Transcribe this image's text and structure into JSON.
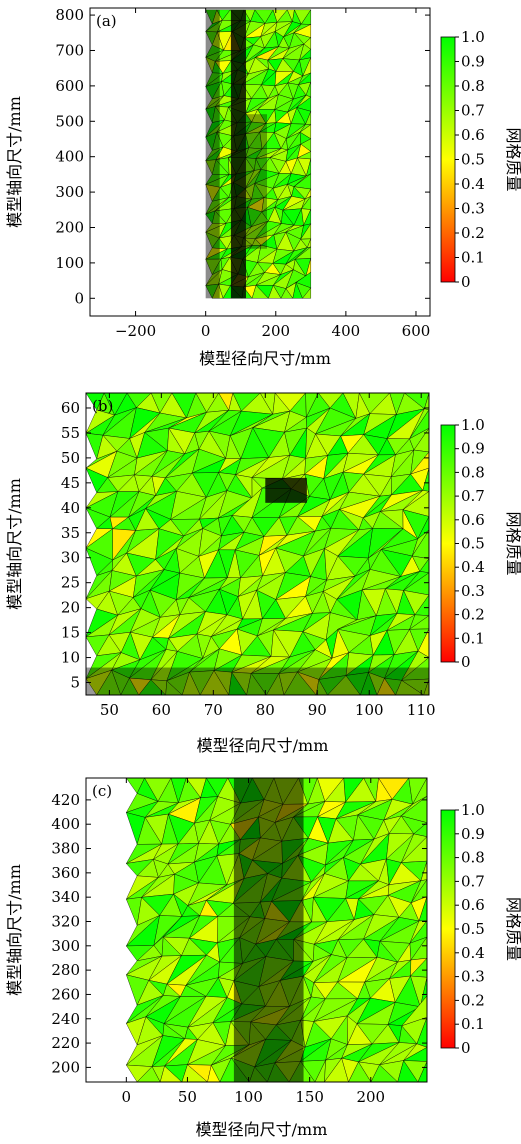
{
  "chart_data": [
    {
      "type": "heatmap",
      "panel_label": "(a)",
      "xlabel": "模型径向尺寸/mm",
      "ylabel": "模型轴向尺寸/mm",
      "xlim": [
        -330,
        640
      ],
      "ylim": [
        -50,
        820
      ],
      "xticks": [
        -200,
        0,
        200,
        400,
        600
      ],
      "xtick_labels": [
        "−200",
        "0",
        "200",
        "400",
        "600"
      ],
      "yticks": [
        0,
        100,
        200,
        300,
        400,
        500,
        600,
        700,
        800
      ],
      "ytick_labels": [
        "0",
        "100",
        "200",
        "300",
        "400",
        "500",
        "600",
        "700",
        "800"
      ],
      "mesh_extent_x": [
        0,
        300
      ],
      "mesh_extent_y": [
        0,
        815
      ],
      "colorbar": {
        "label": "网格质量",
        "range": [
          0,
          1
        ],
        "ticks": [
          0,
          0.1,
          0.2,
          0.3,
          0.4,
          0.5,
          0.6,
          0.7,
          0.8,
          0.9,
          1.0
        ],
        "tick_labels": [
          "0",
          "0.1",
          "0.2",
          "0.3",
          "0.4",
          "0.5",
          "0.6",
          "0.7",
          "0.8",
          "0.9",
          "1.0"
        ],
        "colors": [
          "#ff0000",
          "#ffff00",
          "#00ff00"
        ]
      },
      "grid": false
    },
    {
      "type": "heatmap",
      "panel_label": "(b)",
      "xlabel": "模型径向尺寸/mm",
      "ylabel": "模型轴向尺寸/mm",
      "xlim": [
        45.5,
        111.5
      ],
      "ylim": [
        2.5,
        63
      ],
      "xticks": [
        50,
        60,
        70,
        80,
        90,
        100,
        110
      ],
      "xtick_labels": [
        "50",
        "60",
        "70",
        "80",
        "90",
        "100",
        "110"
      ],
      "yticks": [
        5,
        10,
        15,
        20,
        25,
        30,
        35,
        40,
        45,
        50,
        55,
        60
      ],
      "ytick_labels": [
        "5",
        "10",
        "15",
        "20",
        "25",
        "30",
        "35",
        "40",
        "45",
        "50",
        "55",
        "60"
      ],
      "mesh_extent_x": [
        45.5,
        111.5
      ],
      "mesh_extent_y": [
        2.5,
        63
      ],
      "colorbar": {
        "label": "网格质量",
        "range": [
          0,
          1
        ],
        "ticks": [
          0,
          0.1,
          0.2,
          0.3,
          0.4,
          0.5,
          0.6,
          0.7,
          0.8,
          0.9,
          1.0
        ],
        "tick_labels": [
          "0",
          "0.1",
          "0.2",
          "0.3",
          "0.4",
          "0.5",
          "0.6",
          "0.7",
          "0.8",
          "0.9",
          "1.0"
        ],
        "colors": [
          "#ff0000",
          "#ffff00",
          "#00ff00"
        ]
      },
      "grid": false
    },
    {
      "type": "heatmap",
      "panel_label": "(c)",
      "xlabel": "模型径向尺寸/mm",
      "ylabel": "模型轴向尺寸/mm",
      "xlim": [
        -33,
        246
      ],
      "ylim": [
        188,
        438
      ],
      "xticks": [
        0,
        50,
        100,
        150,
        200
      ],
      "xtick_labels": [
        "0",
        "50",
        "100",
        "150",
        "200"
      ],
      "yticks": [
        200,
        220,
        240,
        260,
        280,
        300,
        320,
        340,
        360,
        380,
        400,
        420
      ],
      "ytick_labels": [
        "200",
        "220",
        "240",
        "260",
        "280",
        "300",
        "320",
        "340",
        "360",
        "380",
        "400",
        "420"
      ],
      "mesh_extent_x": [
        0,
        246
      ],
      "mesh_extent_y": [
        188,
        438
      ],
      "colorbar": {
        "label": "网格质量",
        "range": [
          0,
          1
        ],
        "ticks": [
          0,
          0.1,
          0.2,
          0.3,
          0.4,
          0.5,
          0.6,
          0.7,
          0.8,
          0.9,
          1.0
        ],
        "tick_labels": [
          "0",
          "0.1",
          "0.2",
          "0.3",
          "0.4",
          "0.5",
          "0.6",
          "0.7",
          "0.8",
          "0.9",
          "1.0"
        ],
        "colors": [
          "#ff0000",
          "#ffff00",
          "#00ff00"
        ]
      },
      "grid": false
    }
  ]
}
